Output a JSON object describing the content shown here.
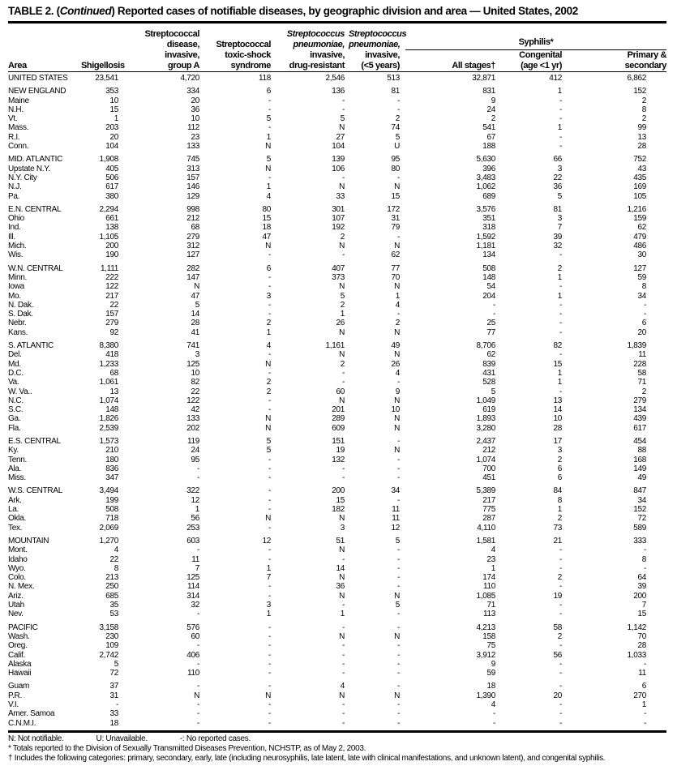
{
  "title": {
    "prefix": "TABLE 2. (",
    "italic": "Continued",
    "suffix": ") Reported cases of notifiable diseases, by geographic division and area — United States, 2002"
  },
  "headers": {
    "area": "Area",
    "shigellosis": "Shigellosis",
    "strep_a": [
      "Streptococcal",
      "disease,",
      "invasive,",
      "group A"
    ],
    "toxic": [
      "Streptococcal",
      "toxic-shock",
      "syndrome"
    ],
    "drug": [
      "Streptococcus",
      "pneumoniae,",
      "invasive,",
      "drug-resistant"
    ],
    "under5": [
      "Streptococcus",
      "pneumoniae,",
      "invasive,",
      "(<5 years)"
    ],
    "syphilis": "Syphilis*",
    "all_stages": "All  stages†",
    "congenital": [
      "Congenital",
      "(age <1 yr)"
    ],
    "primary": [
      "Primary &",
      "secondary"
    ]
  },
  "rows": [
    {
      "g": 0,
      "c": [
        "UNITED STATES",
        "23,541",
        "4,720",
        "118",
        "2,546",
        "513",
        "32,871",
        "412",
        "6,862"
      ]
    },
    {
      "g": 1,
      "c": [
        "NEW ENGLAND",
        "353",
        "334",
        "6",
        "136",
        "81",
        "831",
        "1",
        "152"
      ]
    },
    {
      "g": 0,
      "c": [
        "Maine",
        "10",
        "20",
        "-",
        "-",
        "-",
        "9",
        "-",
        "2"
      ]
    },
    {
      "g": 0,
      "c": [
        "N.H.",
        "15",
        "36",
        "-",
        "-",
        "-",
        "24",
        "-",
        "8"
      ]
    },
    {
      "g": 0,
      "c": [
        "Vt.",
        "1",
        "10",
        "5",
        "5",
        "2",
        "2",
        "-",
        "2"
      ]
    },
    {
      "g": 0,
      "c": [
        "Mass.",
        "203",
        "112",
        "-",
        "N",
        "74",
        "541",
        "1",
        "99"
      ]
    },
    {
      "g": 0,
      "c": [
        "R.I.",
        "20",
        "23",
        "1",
        "27",
        "5",
        "67",
        "-",
        "13"
      ]
    },
    {
      "g": 0,
      "c": [
        "Conn.",
        "104",
        "133",
        "N",
        "104",
        "U",
        "188",
        "-",
        "28"
      ]
    },
    {
      "g": 1,
      "c": [
        "MID. ATLANTIC",
        "1,908",
        "745",
        "5",
        "139",
        "95",
        "5,630",
        "66",
        "752"
      ]
    },
    {
      "g": 0,
      "c": [
        "Upstate N.Y.",
        "405",
        "313",
        "N",
        "106",
        "80",
        "396",
        "3",
        "43"
      ]
    },
    {
      "g": 0,
      "c": [
        "N.Y. City",
        "506",
        "157",
        "-",
        "-",
        "-",
        "3,483",
        "22",
        "435"
      ]
    },
    {
      "g": 0,
      "c": [
        "N.J.",
        "617",
        "146",
        "1",
        "N",
        "N",
        "1,062",
        "36",
        "169"
      ]
    },
    {
      "g": 0,
      "c": [
        "Pa.",
        "380",
        "129",
        "4",
        "33",
        "15",
        "689",
        "5",
        "105"
      ]
    },
    {
      "g": 1,
      "c": [
        "E.N. CENTRAL",
        "2,294",
        "998",
        "80",
        "301",
        "172",
        "3,576",
        "81",
        "1,216"
      ]
    },
    {
      "g": 0,
      "c": [
        "Ohio",
        "661",
        "212",
        "15",
        "107",
        "31",
        "351",
        "3",
        "159"
      ]
    },
    {
      "g": 0,
      "c": [
        "Ind.",
        "138",
        "68",
        "18",
        "192",
        "79",
        "318",
        "7",
        "62"
      ]
    },
    {
      "g": 0,
      "c": [
        "Ill.",
        "1,105",
        "279",
        "47",
        "2",
        "-",
        "1,592",
        "39",
        "479"
      ]
    },
    {
      "g": 0,
      "c": [
        "Mich.",
        "200",
        "312",
        "N",
        "N",
        "N",
        "1,181",
        "32",
        "486"
      ]
    },
    {
      "g": 0,
      "c": [
        "Wis.",
        "190",
        "127",
        "-",
        "-",
        "62",
        "134",
        "-",
        "30"
      ]
    },
    {
      "g": 1,
      "c": [
        "W.N. CENTRAL",
        "1,111",
        "282",
        "6",
        "407",
        "77",
        "508",
        "2",
        "127"
      ]
    },
    {
      "g": 0,
      "c": [
        "Minn.",
        "222",
        "147",
        "-",
        "373",
        "70",
        "148",
        "1",
        "59"
      ]
    },
    {
      "g": 0,
      "c": [
        "Iowa",
        "122",
        "N",
        "-",
        "N",
        "N",
        "54",
        "-",
        "8"
      ]
    },
    {
      "g": 0,
      "c": [
        "Mo.",
        "217",
        "47",
        "3",
        "5",
        "1",
        "204",
        "1",
        "34"
      ]
    },
    {
      "g": 0,
      "c": [
        "N. Dak.",
        "22",
        "5",
        "-",
        "2",
        "4",
        "-",
        "-",
        "-"
      ]
    },
    {
      "g": 0,
      "c": [
        "S. Dak.",
        "157",
        "14",
        "-",
        "1",
        "-",
        "-",
        "-",
        "-"
      ]
    },
    {
      "g": 0,
      "c": [
        "Nebr.",
        "279",
        "28",
        "2",
        "26",
        "2",
        "25",
        "-",
        "6"
      ]
    },
    {
      "g": 0,
      "c": [
        "Kans.",
        "92",
        "41",
        "1",
        "N",
        "N",
        "77",
        "-",
        "20"
      ]
    },
    {
      "g": 1,
      "c": [
        "S. ATLANTIC",
        "8,380",
        "741",
        "4",
        "1,161",
        "49",
        "8,706",
        "82",
        "1,839"
      ]
    },
    {
      "g": 0,
      "c": [
        "Del.",
        "418",
        "3",
        "-",
        "N",
        "N",
        "62",
        "-",
        "11"
      ]
    },
    {
      "g": 0,
      "c": [
        "Md.",
        "1,233",
        "125",
        "N",
        "2",
        "26",
        "839",
        "15",
        "228"
      ]
    },
    {
      "g": 0,
      "c": [
        "D.C.",
        "68",
        "10",
        "-",
        "-",
        "4",
        "431",
        "1",
        "58"
      ]
    },
    {
      "g": 0,
      "c": [
        "Va.",
        "1,061",
        "82",
        "2",
        "-",
        "-",
        "528",
        "1",
        "71"
      ]
    },
    {
      "g": 0,
      "c": [
        "W. Va..",
        "13",
        "22",
        "2",
        "60",
        "9",
        "5",
        "-",
        "2"
      ]
    },
    {
      "g": 0,
      "c": [
        "N.C.",
        "1,074",
        "122",
        "-",
        "N",
        "N",
        "1,049",
        "13",
        "279"
      ]
    },
    {
      "g": 0,
      "c": [
        "S.C.",
        "148",
        "42",
        "-",
        "201",
        "10",
        "619",
        "14",
        "134"
      ]
    },
    {
      "g": 0,
      "c": [
        "Ga.",
        "1,826",
        "133",
        "N",
        "289",
        "N",
        "1,893",
        "10",
        "439"
      ]
    },
    {
      "g": 0,
      "c": [
        "Fla.",
        "2,539",
        "202",
        "N",
        "609",
        "N",
        "3,280",
        "28",
        "617"
      ]
    },
    {
      "g": 1,
      "c": [
        "E.S. CENTRAL",
        "1,573",
        "119",
        "5",
        "151",
        "-",
        "2,437",
        "17",
        "454"
      ]
    },
    {
      "g": 0,
      "c": [
        "Ky.",
        "210",
        "24",
        "5",
        "19",
        "N",
        "212",
        "3",
        "88"
      ]
    },
    {
      "g": 0,
      "c": [
        "Tenn.",
        "180",
        "95",
        "-",
        "132",
        "-",
        "1,074",
        "2",
        "168"
      ]
    },
    {
      "g": 0,
      "c": [
        "Ala.",
        "836",
        "-",
        "-",
        "-",
        "-",
        "700",
        "6",
        "149"
      ]
    },
    {
      "g": 0,
      "c": [
        "Miss.",
        "347",
        "-",
        "-",
        "-",
        "-",
        "451",
        "6",
        "49"
      ]
    },
    {
      "g": 1,
      "c": [
        "W.S. CENTRAL",
        "3,494",
        "322",
        "-",
        "200",
        "34",
        "5,389",
        "84",
        "847"
      ]
    },
    {
      "g": 0,
      "c": [
        "Ark.",
        "199",
        "12",
        "-",
        "15",
        "-",
        "217",
        "8",
        "34"
      ]
    },
    {
      "g": 0,
      "c": [
        "La.",
        "508",
        "1",
        "-",
        "182",
        "11",
        "775",
        "1",
        "152"
      ]
    },
    {
      "g": 0,
      "c": [
        "Okla.",
        "718",
        "56",
        "N",
        "N",
        "11",
        "287",
        "2",
        "72"
      ]
    },
    {
      "g": 0,
      "c": [
        "Tex.",
        "2,069",
        "253",
        "-",
        "3",
        "12",
        "4,110",
        "73",
        "589"
      ]
    },
    {
      "g": 1,
      "c": [
        "MOUNTAIN",
        "1,270",
        "603",
        "12",
        "51",
        "5",
        "1,581",
        "21",
        "333"
      ]
    },
    {
      "g": 0,
      "c": [
        "Mont.",
        "4",
        "-",
        "-",
        "N",
        "-",
        "4",
        "-",
        "-"
      ]
    },
    {
      "g": 0,
      "c": [
        "Idaho",
        "22",
        "11",
        "-",
        "-",
        "-",
        "23",
        "-",
        "8"
      ]
    },
    {
      "g": 0,
      "c": [
        "Wyo.",
        "8",
        "7",
        "1",
        "14",
        "-",
        "1",
        "-",
        "-"
      ]
    },
    {
      "g": 0,
      "c": [
        "Colo.",
        "213",
        "125",
        "7",
        "N",
        "-",
        "174",
        "2",
        "64"
      ]
    },
    {
      "g": 0,
      "c": [
        "N. Mex.",
        "250",
        "114",
        "-",
        "36",
        "-",
        "110",
        "-",
        "39"
      ]
    },
    {
      "g": 0,
      "c": [
        "Ariz.",
        "685",
        "314",
        "-",
        "N",
        "N",
        "1,085",
        "19",
        "200"
      ]
    },
    {
      "g": 0,
      "c": [
        "Utah",
        "35",
        "32",
        "3",
        "-",
        "5",
        "71",
        "-",
        "7"
      ]
    },
    {
      "g": 0,
      "c": [
        "Nev.",
        "53",
        "-",
        "1",
        "1",
        "-",
        "113",
        "-",
        "15"
      ]
    },
    {
      "g": 1,
      "c": [
        "PACIFIC",
        "3,158",
        "576",
        "-",
        "-",
        "-",
        "4,213",
        "58",
        "1,142"
      ]
    },
    {
      "g": 0,
      "c": [
        "Wash.",
        "230",
        "60",
        "-",
        "N",
        "N",
        "158",
        "2",
        "70"
      ]
    },
    {
      "g": 0,
      "c": [
        "Oreg.",
        "109",
        "-",
        "-",
        "-",
        "-",
        "75",
        "-",
        "28"
      ]
    },
    {
      "g": 0,
      "c": [
        "Calif.",
        "2,742",
        "406",
        "-",
        "-",
        "-",
        "3,912",
        "56",
        "1,033"
      ]
    },
    {
      "g": 0,
      "c": [
        "Alaska",
        "5",
        "-",
        "-",
        "-",
        "-",
        "9",
        "-",
        "-"
      ]
    },
    {
      "g": 0,
      "c": [
        "Hawaii",
        "72",
        "110",
        "-",
        "-",
        "-",
        "59",
        "-",
        "11"
      ]
    },
    {
      "g": 1,
      "c": [
        "Guam",
        "37",
        "-",
        "-",
        "4",
        "-",
        "18",
        "-",
        "6"
      ]
    },
    {
      "g": 0,
      "c": [
        "P.R.",
        "31",
        "N",
        "N",
        "N",
        "N",
        "1,390",
        "20",
        "270"
      ]
    },
    {
      "g": 0,
      "c": [
        "V.I.",
        "-",
        "-",
        "-",
        "-",
        "-",
        "4",
        "-",
        "1"
      ]
    },
    {
      "g": 0,
      "c": [
        "Amer. Samoa",
        "33",
        "-",
        "-",
        "-",
        "-",
        "-",
        "-",
        "-"
      ]
    },
    {
      "g": 0,
      "c": [
        "C.N.M.I.",
        "18",
        "-",
        "-",
        "-",
        "-",
        "-",
        "-",
        "-"
      ]
    }
  ],
  "notes": {
    "n": "N: Not notifiable.",
    "u": "U: Unavailable.",
    "dash": "-: No reported cases.",
    "star": "* Totals reported to the Division of Sexually Transmitted Diseases Prevention, NCHSTP, as of May 2, 2003.",
    "dagger": "† Includes the following categories: primary, secondary, early, late (including neurosyphilis, late latent, late with clinical manifestations, and unknown latent), and congenital syphilis."
  }
}
